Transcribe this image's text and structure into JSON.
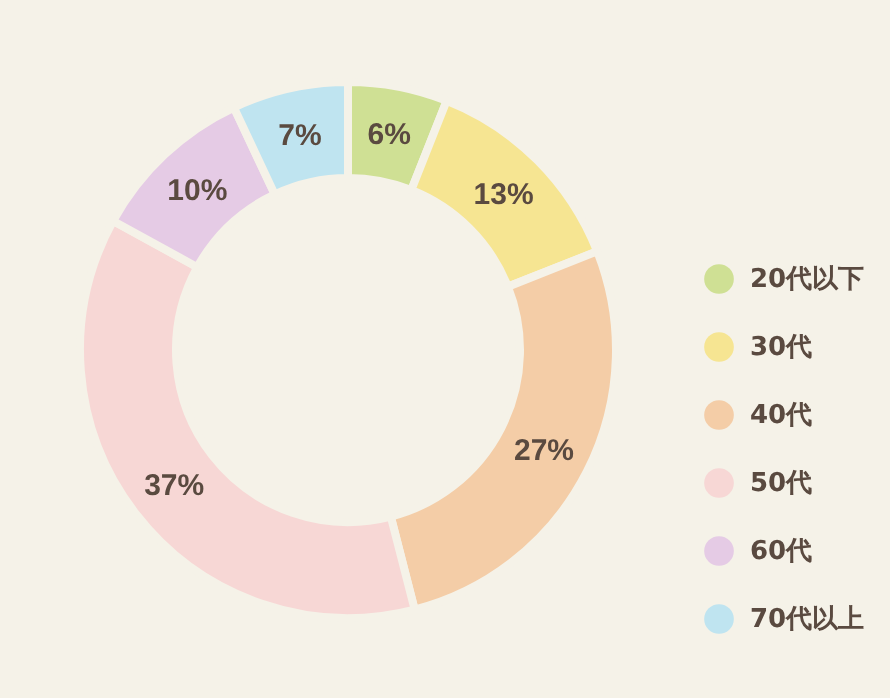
{
  "chart_data": {
    "type": "donut",
    "categories": [
      "20代以下",
      "30代",
      "40代",
      "50代",
      "60代",
      "70代以上"
    ],
    "values": [
      6,
      13,
      27,
      37,
      10,
      7
    ],
    "value_labels": [
      "6%",
      "13%",
      "27%",
      "37%",
      "10%",
      "7%"
    ],
    "colors": [
      "#cfe094",
      "#f6e592",
      "#f4cda7",
      "#f7d7d5",
      "#e5cbe5",
      "#bfe4f0"
    ],
    "legend": "right"
  }
}
